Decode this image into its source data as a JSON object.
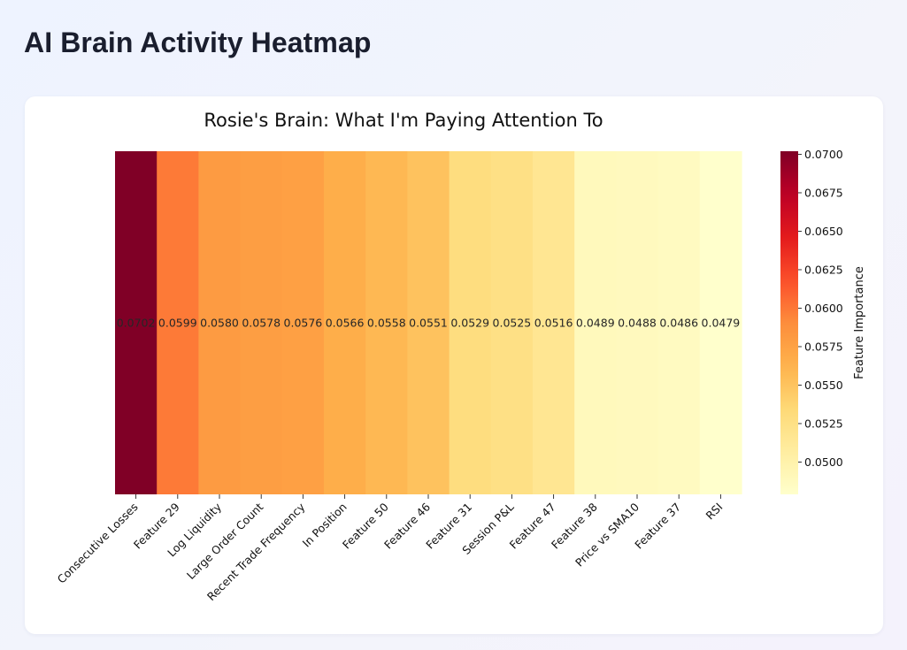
{
  "page": {
    "title": "AI Brain Activity Heatmap"
  },
  "chart_data": {
    "type": "heatmap",
    "title": "Rosie's Brain: What I'm Paying Attention To",
    "categories": [
      "Consecutive Losses",
      "Feature 29",
      "Log Liquidity",
      "Large Order Count",
      "Recent Trade Frequency",
      "In Position",
      "Feature 50",
      "Feature 46",
      "Feature 31",
      "Session P&L",
      "Feature 47",
      "Feature 38",
      "Price vs SMA10",
      "Feature 37",
      "RSI"
    ],
    "values": [
      0.0702,
      0.0599,
      0.058,
      0.0578,
      0.0576,
      0.0566,
      0.0558,
      0.0551,
      0.0529,
      0.0525,
      0.0516,
      0.0489,
      0.0488,
      0.0486,
      0.0479
    ],
    "value_labels": [
      "0.0702",
      "0.0599",
      "0.0580",
      "0.0578",
      "0.0576",
      "0.0566",
      "0.0558",
      "0.0551",
      "0.0529",
      "0.0525",
      "0.0516",
      "0.0489",
      "0.0488",
      "0.0486",
      "0.0479"
    ],
    "colormap": "YlOrRd",
    "colorbar": {
      "label": "Feature Importance",
      "vmin": 0.0479,
      "vmax": 0.0702,
      "ticks": [
        0.07,
        0.0675,
        0.065,
        0.0625,
        0.06,
        0.0575,
        0.055,
        0.0525,
        0.05
      ],
      "tick_labels": [
        "0.0700",
        "0.0675",
        "0.0650",
        "0.0625",
        "0.0600",
        "0.0575",
        "0.0550",
        "0.0525",
        "0.0500"
      ]
    },
    "colors": [
      "#ffffcc",
      "#ffeda0",
      "#fed976",
      "#feb24c",
      "#fd8d3c",
      "#fc4e2a",
      "#e31a1c",
      "#bd0026",
      "#800026"
    ]
  }
}
